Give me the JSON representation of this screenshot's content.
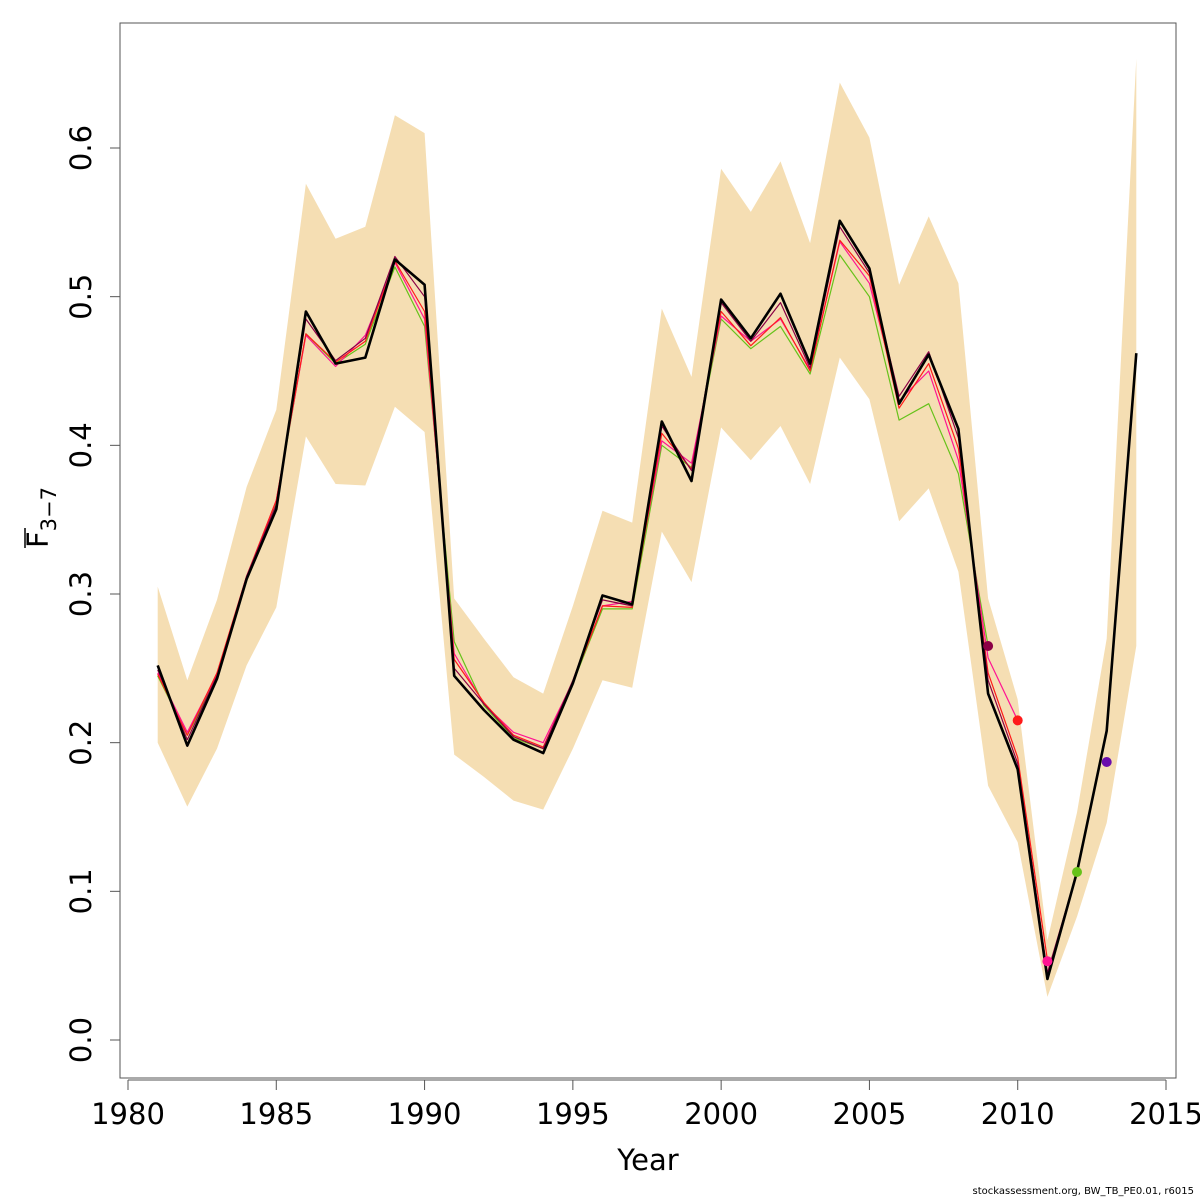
{
  "chart_data": {
    "type": "line",
    "xlabel": "Year",
    "ylabel": {
      "main": "F",
      "subscript": "3−7"
    },
    "xlim": [
      1981,
      2014
    ],
    "ylim": [
      0.0,
      0.66
    ],
    "x_ticks": [
      1980,
      1985,
      1990,
      1995,
      2000,
      2005,
      2010,
      2015
    ],
    "y_ticks": [
      0.0,
      0.1,
      0.2,
      0.3,
      0.4,
      0.5,
      0.6
    ],
    "grid": false,
    "legend": "none",
    "colors": {
      "band": "#f5deb3",
      "main": "#000000",
      "retro": [
        "#8b0045",
        "#ff1a1a",
        "#ff1493",
        "#66c21a",
        "#6a0dad"
      ]
    },
    "years": [
      1981,
      1982,
      1983,
      1984,
      1985,
      1986,
      1987,
      1988,
      1989,
      1990,
      1991,
      1992,
      1993,
      1994,
      1995,
      1996,
      1997,
      1998,
      1999,
      2000,
      2001,
      2002,
      2003,
      2004,
      2005,
      2006,
      2007,
      2008,
      2009,
      2010,
      2011,
      2012,
      2013,
      2014
    ],
    "band_upper": [
      0.305,
      0.242,
      0.296,
      0.372,
      0.424,
      0.576,
      0.539,
      0.547,
      0.622,
      0.61,
      0.297,
      0.27,
      0.244,
      0.233,
      0.292,
      0.356,
      0.348,
      0.492,
      0.446,
      0.586,
      0.557,
      0.591,
      0.536,
      0.644,
      0.607,
      0.508,
      0.554,
      0.509,
      0.297,
      0.229,
      0.067,
      0.153,
      0.27,
      0.66
    ],
    "band_lower": [
      0.2,
      0.157,
      0.196,
      0.252,
      0.291,
      0.406,
      0.374,
      0.373,
      0.426,
      0.409,
      0.192,
      0.177,
      0.161,
      0.155,
      0.196,
      0.242,
      0.237,
      0.342,
      0.308,
      0.412,
      0.39,
      0.413,
      0.374,
      0.459,
      0.431,
      0.349,
      0.371,
      0.315,
      0.171,
      0.133,
      0.029,
      0.083,
      0.146,
      0.265
    ],
    "series": [
      {
        "values": [
          0.252,
          0.198,
          0.243,
          0.31,
          0.357,
          0.49,
          0.455,
          0.459,
          0.525,
          0.508,
          0.245,
          0.222,
          0.202,
          0.193,
          0.24,
          0.299,
          0.293,
          0.416,
          0.376,
          0.498,
          0.472,
          0.502,
          0.455,
          0.551,
          0.519,
          0.428,
          0.461,
          0.411,
          0.233,
          0.182,
          0.041,
          0.113,
          0.208,
          0.462
        ]
      },
      {
        "values": [
          0.249,
          0.202,
          0.245,
          0.312,
          0.36,
          0.485,
          0.457,
          0.472,
          0.527,
          0.5,
          0.25,
          0.226,
          0.204,
          0.196,
          0.242,
          0.296,
          0.292,
          0.413,
          0.383,
          0.496,
          0.47,
          0.496,
          0.452,
          0.547,
          0.516,
          0.433,
          0.463,
          0.405,
          0.242,
          0.186,
          0.045,
          0.113
        ]
      },
      {
        "values": [
          0.246,
          0.205,
          0.247,
          0.312,
          0.363,
          0.475,
          0.456,
          0.47,
          0.524,
          0.49,
          0.256,
          0.227,
          0.205,
          0.197,
          0.241,
          0.292,
          0.291,
          0.408,
          0.384,
          0.49,
          0.467,
          0.486,
          0.45,
          0.538,
          0.514,
          0.425,
          0.455,
          0.398,
          0.247,
          0.19,
          0.054
        ]
      },
      {
        "values": [
          0.247,
          0.207,
          0.246,
          0.311,
          0.363,
          0.474,
          0.453,
          0.474,
          0.523,
          0.485,
          0.26,
          0.226,
          0.207,
          0.2,
          0.241,
          0.292,
          0.295,
          0.403,
          0.388,
          0.487,
          0.47,
          0.485,
          0.451,
          0.537,
          0.509,
          0.43,
          0.45,
          0.39,
          0.257,
          0.215
        ]
      },
      {
        "values": [
          0.245,
          0.205,
          0.244,
          0.309,
          0.361,
          0.475,
          0.455,
          0.468,
          0.52,
          0.48,
          0.268,
          0.225,
          0.203,
          0.196,
          0.24,
          0.29,
          0.29,
          0.4,
          0.385,
          0.485,
          0.465,
          0.48,
          0.448,
          0.528,
          0.5,
          0.417,
          0.428,
          0.381,
          0.265
        ]
      }
    ],
    "endpoints": [
      {
        "x": 2009,
        "y": 0.265
      },
      {
        "x": 2010,
        "y": 0.215
      },
      {
        "x": 2011,
        "y": 0.053
      },
      {
        "x": 2012,
        "y": 0.113
      },
      {
        "x": 2013,
        "y": 0.187
      }
    ]
  },
  "footer": {
    "credit": "stockassessment.org, BW_TB_PE0.01, r6015"
  }
}
